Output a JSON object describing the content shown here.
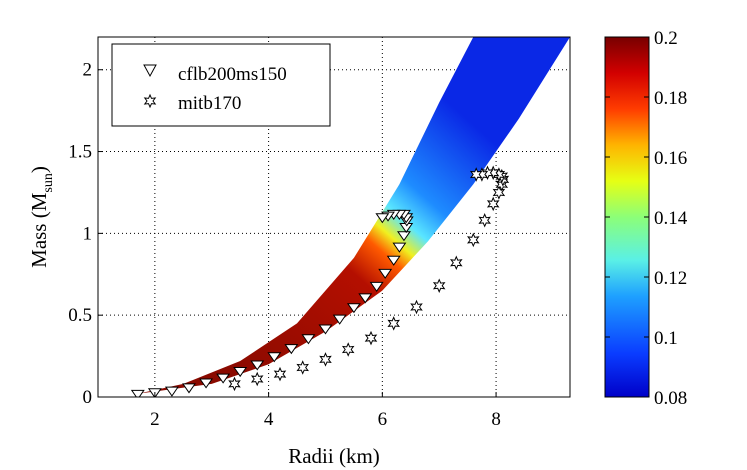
{
  "chart_data": {
    "type": "scatter",
    "title": "",
    "xlabel": "Radii (km)",
    "ylabel_main": "Mass (M",
    "ylabel_sub": "sun",
    "ylabel_close": ")",
    "xlim": [
      1.0,
      9.3
    ],
    "ylim": [
      0.0,
      2.2
    ],
    "x_ticks": [
      2,
      4,
      6,
      8
    ],
    "x_tick_labels": [
      "2",
      "4",
      "6",
      "8"
    ],
    "y_ticks": [
      0,
      0.5,
      1,
      1.5,
      2
    ],
    "y_tick_labels": [
      "0",
      "0.5",
      "1",
      "1.5",
      "2"
    ],
    "grid": true,
    "legend_position": "top-left",
    "colorbar": {
      "min": 0.08,
      "max": 0.2,
      "ticks": [
        0.08,
        0.1,
        0.12,
        0.14,
        0.16,
        0.18,
        0.2
      ],
      "tick_labels": [
        "0.08",
        "0.1",
        "0.12",
        "0.14",
        "0.16",
        "0.18",
        "0.2"
      ]
    },
    "band": {
      "description": "colored region, lower-left edge and upper-right edge in data units",
      "left_edge": [
        [
          1.7,
          0.02
        ],
        [
          2.5,
          0.08
        ],
        [
          3.5,
          0.22
        ],
        [
          4.5,
          0.45
        ],
        [
          5.5,
          0.85
        ],
        [
          6.3,
          1.3
        ],
        [
          7.0,
          1.8
        ],
        [
          7.6,
          2.2
        ]
      ],
      "right_edge": [
        [
          9.3,
          2.2
        ],
        [
          8.4,
          1.7
        ],
        [
          7.6,
          1.3
        ],
        [
          6.8,
          0.95
        ],
        [
          6.0,
          0.65
        ],
        [
          5.0,
          0.4
        ],
        [
          4.0,
          0.2
        ],
        [
          3.0,
          0.08
        ],
        [
          1.7,
          0.02
        ]
      ]
    },
    "series": [
      {
        "name": "cflb200ms150",
        "marker": "triangle-down",
        "x": [
          1.7,
          2.0,
          2.3,
          2.6,
          2.9,
          3.2,
          3.5,
          3.8,
          4.1,
          4.4,
          4.7,
          5.0,
          5.25,
          5.5,
          5.7,
          5.9,
          6.05,
          6.2,
          6.3,
          6.38,
          6.42,
          6.43,
          6.42,
          6.38,
          6.3,
          6.2,
          6.1,
          6.0
        ],
        "y": [
          0.02,
          0.03,
          0.04,
          0.06,
          0.09,
          0.12,
          0.16,
          0.2,
          0.25,
          0.3,
          0.36,
          0.42,
          0.48,
          0.55,
          0.61,
          0.68,
          0.76,
          0.84,
          0.92,
          0.99,
          1.04,
          1.08,
          1.1,
          1.12,
          1.12,
          1.12,
          1.11,
          1.1
        ]
      },
      {
        "name": "mitb170",
        "marker": "hexagram",
        "x": [
          3.4,
          3.8,
          4.2,
          4.6,
          5.0,
          5.4,
          5.8,
          6.2,
          6.6,
          7.0,
          7.3,
          7.6,
          7.8,
          7.95,
          8.05,
          8.1,
          8.12,
          8.1,
          8.05,
          7.95,
          7.85,
          7.75,
          7.65
        ],
        "y": [
          0.08,
          0.11,
          0.14,
          0.18,
          0.23,
          0.29,
          0.36,
          0.45,
          0.55,
          0.68,
          0.82,
          0.96,
          1.08,
          1.18,
          1.25,
          1.3,
          1.33,
          1.35,
          1.36,
          1.37,
          1.37,
          1.36,
          1.36
        ]
      }
    ]
  }
}
